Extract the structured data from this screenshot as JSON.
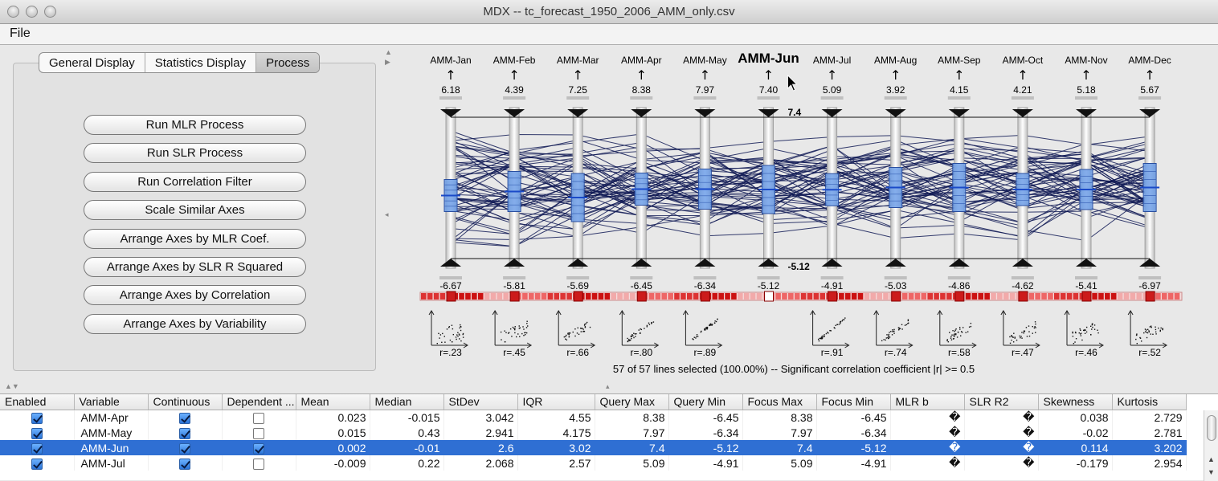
{
  "window": {
    "title": "MDX -- tc_forecast_1950_2006_AMM_only.csv"
  },
  "menu": {
    "file": "File"
  },
  "tabs": [
    "General Display",
    "Statistics Display",
    "Process"
  ],
  "process_buttons": [
    "Run MLR Process",
    "Run SLR Process",
    "Run Correlation Filter",
    "Scale Similar Axes",
    "Arrange Axes by MLR Coef.",
    "Arrange Axes by SLR R Squared",
    "Arrange Axes by Correlation",
    "Arrange Axes by Variability"
  ],
  "chart_data": {
    "type": "parallel-coordinates",
    "axes": [
      {
        "name": "AMM-Jan",
        "max": "6.18",
        "min": "-6.67",
        "r": "r=.23",
        "mean": -0.3
      },
      {
        "name": "AMM-Feb",
        "max": "4.39",
        "min": "-5.81",
        "r": "r=.45",
        "mean": -0.1
      },
      {
        "name": "AMM-Mar",
        "max": "7.25",
        "min": "-5.69",
        "r": "r=.66",
        "mean": -0.4
      },
      {
        "name": "AMM-Apr",
        "max": "8.38",
        "min": "-6.45",
        "r": "r=.80",
        "mean": 0.02
      },
      {
        "name": "AMM-May",
        "max": "7.97",
        "min": "-6.34",
        "r": "r=.89",
        "mean": 0.02
      },
      {
        "name": "AMM-Jun",
        "max": "7.40",
        "min": "-5.12",
        "r": "",
        "mean": 0.0,
        "focus": true
      },
      {
        "name": "AMM-Jul",
        "max": "5.09",
        "min": "-4.91",
        "r": "r=.91",
        "mean": -0.01
      },
      {
        "name": "AMM-Aug",
        "max": "3.92",
        "min": "-5.03",
        "r": "r=.74",
        "mean": 0.1
      },
      {
        "name": "AMM-Sep",
        "max": "4.15",
        "min": "-4.86",
        "r": "r=.58",
        "mean": 0.1
      },
      {
        "name": "AMM-Oct",
        "max": "4.21",
        "min": "-4.62",
        "r": "r=.47",
        "mean": 0.0
      },
      {
        "name": "AMM-Nov",
        "max": "5.18",
        "min": "-5.41",
        "r": "r=.46",
        "mean": 0.0
      },
      {
        "name": "AMM-Dec",
        "max": "5.67",
        "min": "-6.97",
        "r": "r=.52",
        "mean": 0.1
      }
    ],
    "focus_max": "7.4",
    "focus_min": "-5.12",
    "line_count": 57,
    "status": "57 of 57 lines selected (100.00%)  --  Significant correlation coefficient  |r|  >= 0.5"
  },
  "table": {
    "columns": [
      "Enabled",
      "Variable",
      "Continuous",
      "Dependent ...",
      "Mean",
      "Median",
      "StDev",
      "IQR",
      "Query Max",
      "Query Min",
      "Focus Max",
      "Focus Min",
      "MLR b",
      "SLR R2",
      "Skewness",
      "Kurtosis"
    ],
    "rows": [
      {
        "enabled": true,
        "variable": "AMM-Apr",
        "continuous": true,
        "dependent": false,
        "mean": "0.023",
        "median": "-0.015",
        "stdev": "3.042",
        "iqr": "4.55",
        "qmax": "8.38",
        "qmin": "-6.45",
        "fmax": "8.38",
        "fmin": "-6.45",
        "mlrb": "�",
        "slr": "�",
        "skew": "0.038",
        "kurt": "2.729",
        "selected": false
      },
      {
        "enabled": true,
        "variable": "AMM-May",
        "continuous": true,
        "dependent": false,
        "mean": "0.015",
        "median": "0.43",
        "stdev": "2.941",
        "iqr": "4.175",
        "qmax": "7.97",
        "qmin": "-6.34",
        "fmax": "7.97",
        "fmin": "-6.34",
        "mlrb": "�",
        "slr": "�",
        "skew": "-0.02",
        "kurt": "2.781",
        "selected": false
      },
      {
        "enabled": true,
        "variable": "AMM-Jun",
        "continuous": true,
        "dependent": true,
        "mean": "0.002",
        "median": "-0.01",
        "stdev": "2.6",
        "iqr": "3.02",
        "qmax": "7.4",
        "qmin": "-5.12",
        "fmax": "7.4",
        "fmin": "-5.12",
        "mlrb": "�",
        "slr": "�",
        "skew": "0.114",
        "kurt": "3.202",
        "selected": true
      },
      {
        "enabled": true,
        "variable": "AMM-Jul",
        "continuous": true,
        "dependent": false,
        "mean": "-0.009",
        "median": "0.22",
        "stdev": "2.068",
        "iqr": "2.57",
        "qmax": "5.09",
        "qmin": "-4.91",
        "fmax": "5.09",
        "fmin": "-4.91",
        "mlrb": "�",
        "slr": "�",
        "skew": "-0.179",
        "kurt": "2.954",
        "selected": false
      }
    ]
  },
  "colors": {
    "selected_row": "#2f6fd3",
    "line": "#101a55",
    "box_fill": "#6f9fe8",
    "corr_bar": "#cc1b1b"
  }
}
